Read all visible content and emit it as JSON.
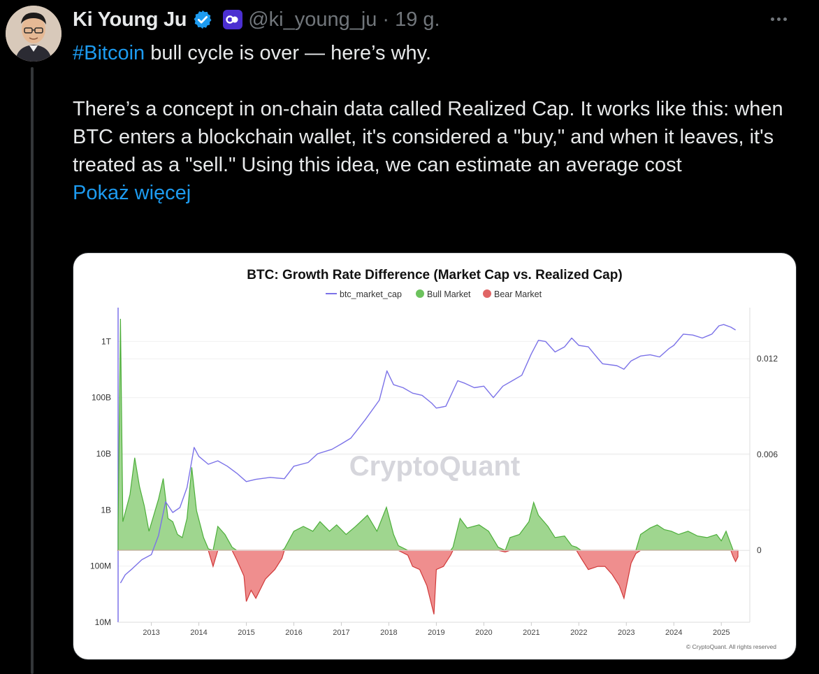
{
  "tweet": {
    "author_name": "Ki Young Ju",
    "handle": "@ki_young_ju",
    "separator": "·",
    "time": "19 g.",
    "hashtag": "#Bitcoin",
    "line1_rest": " bull cycle is over — here’s why.",
    "paragraph2": "There’s a concept in on-chain data called Realized Cap. It works like this: when BTC enters a blockchain wallet, it's considered a \"buy,\" and when it leaves, it's treated as a \"sell.\" Using this idea, we can estimate an average cost",
    "show_more": "Pokaż więcej"
  },
  "icons": {
    "verified": "verified-check-icon",
    "affiliate": "cryptoquant-badge-icon",
    "more": "more-options-icon"
  },
  "colors": {
    "background": "#000000",
    "text": "#e7e9ea",
    "muted": "#71767b",
    "link": "#1d9bf0",
    "verified": "#1d9bf0",
    "market_cap_line": "#7b72e8",
    "bull_fill": "#9fd68f",
    "bull_stroke": "#4cae3a",
    "bear_fill": "#ef8e8e",
    "bear_stroke": "#d03a3a"
  },
  "chart_data": {
    "type": "line",
    "title": "BTC: Growth Rate Difference (Market Cap vs. Realized Cap)",
    "legend_position": "top-center",
    "legend": [
      "btc_market_cap",
      "Bull Market",
      "Bear Market"
    ],
    "watermark": "CryptoQuant",
    "copyright": "© CryptoQuant. All rights reserved",
    "x_ticks": [
      "2013",
      "2014",
      "2015",
      "2016",
      "2017",
      "2018",
      "2019",
      "2020",
      "2021",
      "2022",
      "2023",
      "2024",
      "2025"
    ],
    "y_left_ticks": [
      "1T",
      "100B",
      "10B",
      "1B",
      "100M",
      "10M"
    ],
    "y_left_scale": "log",
    "y_left_range": [
      10000000.0,
      4000000000000.0
    ],
    "y_right_ticks": [
      "0.012",
      "0",
      "0.006"
    ],
    "y_right_range": [
      -0.0045,
      0.0152
    ],
    "x_range": [
      2012.3,
      2025.6
    ],
    "grid": "horizontal",
    "series": [
      {
        "name": "btc_market_cap",
        "axis": "left",
        "points": [
          [
            2012.35,
            50000000.0
          ],
          [
            2012.45,
            70000000.0
          ],
          [
            2012.6,
            90000000.0
          ],
          [
            2012.8,
            130000000.0
          ],
          [
            2013.0,
            160000000.0
          ],
          [
            2013.15,
            350000000.0
          ],
          [
            2013.3,
            1400000000.0
          ],
          [
            2013.45,
            900000000.0
          ],
          [
            2013.6,
            1100000000.0
          ],
          [
            2013.75,
            2500000000.0
          ],
          [
            2013.9,
            13000000000.0
          ],
          [
            2014.0,
            9000000000.0
          ],
          [
            2014.2,
            6500000000.0
          ],
          [
            2014.4,
            7500000000.0
          ],
          [
            2014.6,
            6000000000.0
          ],
          [
            2014.8,
            4500000000.0
          ],
          [
            2015.0,
            3200000000.0
          ],
          [
            2015.2,
            3500000000.0
          ],
          [
            2015.5,
            3800000000.0
          ],
          [
            2015.8,
            3600000000.0
          ],
          [
            2016.0,
            6000000000.0
          ],
          [
            2016.3,
            7000000000.0
          ],
          [
            2016.5,
            10000000000.0
          ],
          [
            2016.8,
            12000000000.0
          ],
          [
            2017.0,
            15000000000.0
          ],
          [
            2017.2,
            19000000000.0
          ],
          [
            2017.5,
            40000000000.0
          ],
          [
            2017.8,
            90000000000.0
          ],
          [
            2017.96,
            300000000000.0
          ],
          [
            2018.1,
            170000000000.0
          ],
          [
            2018.3,
            150000000000.0
          ],
          [
            2018.5,
            120000000000.0
          ],
          [
            2018.7,
            110000000000.0
          ],
          [
            2018.9,
            80000000000.0
          ],
          [
            2019.0,
            65000000000.0
          ],
          [
            2019.2,
            70000000000.0
          ],
          [
            2019.45,
            200000000000.0
          ],
          [
            2019.6,
            180000000000.0
          ],
          [
            2019.8,
            150000000000.0
          ],
          [
            2020.0,
            160000000000.0
          ],
          [
            2020.2,
            100000000000.0
          ],
          [
            2020.4,
            160000000000.0
          ],
          [
            2020.6,
            200000000000.0
          ],
          [
            2020.8,
            250000000000.0
          ],
          [
            2021.0,
            600000000000.0
          ],
          [
            2021.15,
            1050000000000.0
          ],
          [
            2021.3,
            1000000000000.0
          ],
          [
            2021.5,
            650000000000.0
          ],
          [
            2021.7,
            800000000000.0
          ],
          [
            2021.85,
            1150000000000.0
          ],
          [
            2022.0,
            850000000000.0
          ],
          [
            2022.2,
            800000000000.0
          ],
          [
            2022.4,
            500000000000.0
          ],
          [
            2022.5,
            400000000000.0
          ],
          [
            2022.8,
            370000000000.0
          ],
          [
            2022.95,
            320000000000.0
          ],
          [
            2023.1,
            450000000000.0
          ],
          [
            2023.3,
            550000000000.0
          ],
          [
            2023.5,
            580000000000.0
          ],
          [
            2023.7,
            530000000000.0
          ],
          [
            2023.9,
            750000000000.0
          ],
          [
            2024.0,
            850000000000.0
          ],
          [
            2024.2,
            1350000000000.0
          ],
          [
            2024.4,
            1300000000000.0
          ],
          [
            2024.6,
            1150000000000.0
          ],
          [
            2024.8,
            1350000000000.0
          ],
          [
            2024.95,
            1900000000000.0
          ],
          [
            2025.05,
            2000000000000.0
          ],
          [
            2025.2,
            1800000000000.0
          ],
          [
            2025.3,
            1600000000000.0
          ]
        ]
      },
      {
        "name": "growth_rate_difference",
        "axis": "right",
        "points": [
          [
            2012.3,
            0.0015
          ],
          [
            2012.35,
            0.0145
          ],
          [
            2012.4,
            0.0018
          ],
          [
            2012.55,
            0.0035
          ],
          [
            2012.65,
            0.0058
          ],
          [
            2012.75,
            0.004
          ],
          [
            2012.85,
            0.0028
          ],
          [
            2012.95,
            0.0012
          ],
          [
            2013.05,
            0.0022
          ],
          [
            2013.15,
            0.0032
          ],
          [
            2013.25,
            0.0045
          ],
          [
            2013.35,
            0.002
          ],
          [
            2013.45,
            0.0018
          ],
          [
            2013.55,
            0.001
          ],
          [
            2013.65,
            0.0008
          ],
          [
            2013.75,
            0.002
          ],
          [
            2013.85,
            0.0052
          ],
          [
            2013.95,
            0.0025
          ],
          [
            2014.1,
            0.0008
          ],
          [
            2014.2,
            0.0001
          ],
          [
            2014.3,
            -0.001
          ],
          [
            2014.4,
            0.0015
          ],
          [
            2014.55,
            0.001
          ],
          [
            2014.7,
            0.0002
          ],
          [
            2014.8,
            -0.0006
          ],
          [
            2014.95,
            -0.0016
          ],
          [
            2015.0,
            -0.0032
          ],
          [
            2015.1,
            -0.0025
          ],
          [
            2015.2,
            -0.003
          ],
          [
            2015.4,
            -0.0018
          ],
          [
            2015.6,
            -0.0012
          ],
          [
            2015.75,
            -0.0005
          ],
          [
            2015.8,
            0.0001
          ],
          [
            2016.0,
            0.0012
          ],
          [
            2016.2,
            0.0015
          ],
          [
            2016.4,
            0.0012
          ],
          [
            2016.55,
            0.0018
          ],
          [
            2016.75,
            0.0012
          ],
          [
            2016.9,
            0.0016
          ],
          [
            2017.1,
            0.001
          ],
          [
            2017.3,
            0.0015
          ],
          [
            2017.55,
            0.0022
          ],
          [
            2017.75,
            0.0012
          ],
          [
            2017.95,
            0.0027
          ],
          [
            2018.1,
            0.001
          ],
          [
            2018.2,
            0.0003
          ],
          [
            2018.4,
            -0.0003
          ],
          [
            2018.5,
            -0.001
          ],
          [
            2018.65,
            -0.0012
          ],
          [
            2018.8,
            -0.0022
          ],
          [
            2018.95,
            -0.004
          ],
          [
            2019.0,
            -0.0012
          ],
          [
            2019.15,
            -0.001
          ],
          [
            2019.3,
            -0.0003
          ],
          [
            2019.35,
            0.0002
          ],
          [
            2019.5,
            0.002
          ],
          [
            2019.65,
            0.0014
          ],
          [
            2019.9,
            0.0016
          ],
          [
            2020.1,
            0.0012
          ],
          [
            2020.3,
            0.0002
          ],
          [
            2020.45,
            -0.0001
          ],
          [
            2020.55,
            0.0008
          ],
          [
            2020.75,
            0.001
          ],
          [
            2020.95,
            0.0018
          ],
          [
            2021.05,
            0.003
          ],
          [
            2021.15,
            0.0022
          ],
          [
            2021.35,
            0.0015
          ],
          [
            2021.5,
            0.0008
          ],
          [
            2021.7,
            0.0009
          ],
          [
            2021.85,
            0.0003
          ],
          [
            2021.95,
            0.0002
          ],
          [
            2022.05,
            -0.0005
          ],
          [
            2022.2,
            -0.0012
          ],
          [
            2022.4,
            -0.001
          ],
          [
            2022.55,
            -0.001
          ],
          [
            2022.7,
            -0.0015
          ],
          [
            2022.85,
            -0.0022
          ],
          [
            2022.95,
            -0.003
          ],
          [
            2023.1,
            -0.0008
          ],
          [
            2023.2,
            -0.0002
          ],
          [
            2023.3,
            0.001
          ],
          [
            2023.5,
            0.0014
          ],
          [
            2023.65,
            0.0016
          ],
          [
            2023.8,
            0.0013
          ],
          [
            2023.95,
            0.0012
          ],
          [
            2024.1,
            0.001
          ],
          [
            2024.3,
            0.0012
          ],
          [
            2024.5,
            0.0009
          ],
          [
            2024.7,
            0.0008
          ],
          [
            2024.9,
            0.001
          ],
          [
            2025.0,
            0.0006
          ],
          [
            2025.1,
            0.0012
          ],
          [
            2025.2,
            0.0004
          ],
          [
            2025.25,
            -0.0004
          ],
          [
            2025.3,
            -0.0007
          ],
          [
            2025.35,
            -0.0004
          ]
        ]
      }
    ]
  }
}
